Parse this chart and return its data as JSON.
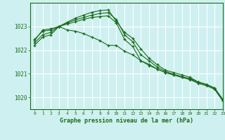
{
  "title": "Graphe pression niveau de la mer (hPa)",
  "bg_color": "#cff0f0",
  "grid_color": "#ffffff",
  "line_color": "#1a6b1a",
  "marker_color": "#1a6b1a",
  "xlim": [
    -0.5,
    23
  ],
  "ylim": [
    1019.5,
    1024.0
  ],
  "yticks": [
    1020,
    1021,
    1022,
    1023
  ],
  "xticks": [
    0,
    1,
    2,
    3,
    4,
    5,
    6,
    7,
    8,
    9,
    10,
    11,
    12,
    13,
    14,
    15,
    16,
    17,
    18,
    19,
    20,
    21,
    22,
    23
  ],
  "series": [
    {
      "x": [
        0,
        1,
        2,
        3,
        4,
        5,
        6,
        7,
        8,
        9,
        10,
        11,
        12,
        13,
        14,
        15,
        16,
        17,
        18,
        19,
        20,
        21,
        22,
        23
      ],
      "y": [
        1022.4,
        1022.85,
        1022.9,
        1023.0,
        1022.85,
        1022.8,
        1022.7,
        1022.55,
        1022.4,
        1022.2,
        1022.2,
        1021.95,
        1021.8,
        1021.55,
        1021.35,
        1021.2,
        1021.05,
        1020.95,
        1020.85,
        1020.75,
        1020.6,
        1020.5,
        1020.35,
        1019.85
      ]
    },
    {
      "x": [
        0,
        1,
        2,
        3,
        4,
        5,
        6,
        7,
        8,
        9,
        10,
        11,
        12,
        13,
        14,
        15,
        16,
        17,
        18,
        19,
        20,
        21,
        22,
        23
      ],
      "y": [
        1022.45,
        1022.8,
        1022.85,
        1023.0,
        1023.1,
        1023.2,
        1023.3,
        1023.38,
        1023.42,
        1023.45,
        1023.15,
        1022.45,
        1022.15,
        1021.55,
        1021.4,
        1021.2,
        1021.05,
        1020.95,
        1020.85,
        1020.8,
        1020.65,
        1020.55,
        1020.4,
        1019.92
      ]
    },
    {
      "x": [
        0,
        1,
        2,
        3,
        4,
        5,
        6,
        7,
        8,
        9,
        10,
        11,
        12,
        13,
        14,
        15,
        16,
        17,
        18,
        19,
        20,
        21,
        22,
        23
      ],
      "y": [
        1022.3,
        1022.65,
        1022.75,
        1023.0,
        1023.15,
        1023.28,
        1023.38,
        1023.48,
        1023.55,
        1023.58,
        1023.3,
        1022.65,
        1022.35,
        1021.8,
        1021.55,
        1021.28,
        1021.1,
        1020.98,
        1020.88,
        1020.78,
        1020.6,
        1020.5,
        1020.35,
        1019.88
      ]
    },
    {
      "x": [
        0,
        1,
        2,
        3,
        4,
        5,
        6,
        7,
        8,
        9,
        10,
        11,
        12,
        13,
        14,
        15,
        16,
        17,
        18,
        19,
        20,
        21,
        22,
        23
      ],
      "y": [
        1022.2,
        1022.55,
        1022.65,
        1023.0,
        1023.18,
        1023.35,
        1023.48,
        1023.6,
        1023.67,
        1023.7,
        1023.22,
        1022.75,
        1022.5,
        1022.05,
        1021.65,
        1021.38,
        1021.15,
        1021.05,
        1020.95,
        1020.85,
        1020.65,
        1020.55,
        1020.4,
        1019.9
      ]
    }
  ]
}
